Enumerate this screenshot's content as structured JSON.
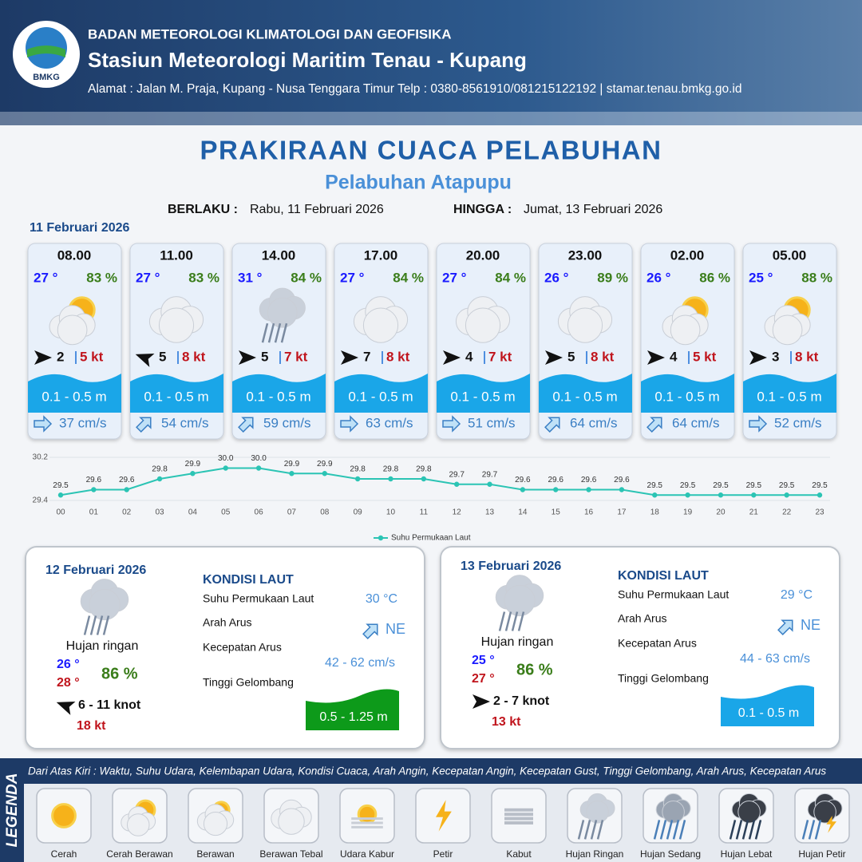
{
  "header": {
    "logo": "BMKG",
    "org": "BADAN METEOROLOGI KLIMATOLOGI DAN GEOFISIKA",
    "station": "Stasiun Meteorologi Maritim Tenau - Kupang",
    "address": "Alamat : Jalan M. Praja, Kupang - Nusa Tenggara Timur Telp : 0380-8561910/081215122192  | stamar.tenau.bmkg.go.id"
  },
  "title": "PRAKIRAAN CUACA PELABUHAN",
  "subtitle": "Pelabuhan Atapupu",
  "validity": {
    "from_label": "BERLAKU :",
    "from": "Rabu, 11 Februari 2026",
    "to_label": "HINGGA :",
    "to": "Jumat, 13 Februari 2026"
  },
  "forecast": {
    "date": "11 Februari 2026",
    "cards": [
      {
        "time": "08.00",
        "temp": "27 °",
        "humidity": "83 %",
        "wind": "2",
        "gust": "5 kt",
        "wave": "0.1 - 0.5 m",
        "current": "37 cm/s"
      },
      {
        "time": "11.00",
        "temp": "27 °",
        "humidity": "83 %",
        "wind": "5",
        "gust": "8 kt",
        "wave": "0.1 - 0.5 m",
        "current": "54 cm/s"
      },
      {
        "time": "14.00",
        "temp": "31 °",
        "humidity": "84 %",
        "wind": "5",
        "gust": "7 kt",
        "wave": "0.1 - 0.5 m",
        "current": "59 cm/s"
      },
      {
        "time": "17.00",
        "temp": "27 °",
        "humidity": "84 %",
        "wind": "7",
        "gust": "8 kt",
        "wave": "0.1 - 0.5 m",
        "current": "63 cm/s"
      },
      {
        "time": "20.00",
        "temp": "27 °",
        "humidity": "84 %",
        "wind": "4",
        "gust": "7 kt",
        "wave": "0.1 - 0.5 m",
        "current": "51 cm/s"
      },
      {
        "time": "23.00",
        "temp": "26 °",
        "humidity": "89 %",
        "wind": "5",
        "gust": "8 kt",
        "wave": "0.1 - 0.5 m",
        "current": "64 cm/s"
      },
      {
        "time": "02.00",
        "temp": "26 °",
        "humidity": "86 %",
        "wind": "4",
        "gust": "5 kt",
        "wave": "0.1 - 0.5 m",
        "current": "64 cm/s"
      },
      {
        "time": "05.00",
        "temp": "25 °",
        "humidity": "88 %",
        "wind": "3",
        "gust": "8 kt",
        "wave": "0.1 - 0.5 m",
        "current": "52 cm/s"
      }
    ]
  },
  "chart_data": {
    "type": "line",
    "categories": [
      "00",
      "01",
      "02",
      "03",
      "04",
      "05",
      "06",
      "07",
      "08",
      "09",
      "10",
      "11",
      "12",
      "13",
      "14",
      "15",
      "16",
      "17",
      "18",
      "19",
      "20",
      "21",
      "22",
      "23"
    ],
    "series": [
      {
        "name": "Suhu Permukaan Laut",
        "color": "#2bc4b4",
        "values": [
          29.5,
          29.6,
          29.6,
          29.8,
          29.9,
          30.0,
          30.0,
          29.9,
          29.9,
          29.8,
          29.8,
          29.8,
          29.7,
          29.7,
          29.6,
          29.6,
          29.6,
          29.6,
          29.5,
          29.5,
          29.5,
          29.5,
          29.5,
          29.5
        ],
        "value_labels": [
          "29.5",
          "29.6",
          "29.6",
          "29.8",
          "29.9",
          "30.0",
          "30.0",
          "29.9",
          "29.9",
          "29.8",
          "29.8",
          "29.8",
          "29.7",
          "29.7",
          "29.6",
          "29.6",
          "29.6",
          "29.6",
          "29.5",
          "29.5",
          "29.5",
          "29.5",
          "29.5",
          "29.5"
        ]
      }
    ],
    "ylim": [
      29.4,
      30.2
    ],
    "yticks": [
      29.4,
      30.2
    ]
  },
  "days": [
    {
      "date": "12 Februari 2026",
      "weather": "Hujan ringan",
      "temp_min": "26 °",
      "temp_max": "28 °",
      "humidity": "86 %",
      "wind": "6  - 11 knot",
      "gust": "18 kt",
      "sea_title": "KONDISI LAUT",
      "sst_label": "Suhu Permukaan Laut",
      "sst": "30 °C",
      "dir_label": "Arah Arus",
      "dir": "NE",
      "speed_label": "Kecepatan Arus",
      "speed": "42 - 62 cm/s",
      "wave_label": "Tinggi Gelombang",
      "wave": "0.5 - 1.25 m",
      "wave_color": "#0d9a1a"
    },
    {
      "date": "13 Februari 2026",
      "weather": "Hujan ringan",
      "temp_min": "25 °",
      "temp_max": "27 °",
      "humidity": "86 %",
      "wind": "2  - 7 knot",
      "gust": "13 kt",
      "sea_title": "KONDISI LAUT",
      "sst_label": "Suhu Permukaan Laut",
      "sst": "29 °C",
      "dir_label": "Arah Arus",
      "dir": "NE",
      "speed_label": "Kecepatan Arus",
      "speed": "44 - 63 cm/s",
      "wave_label": "Tinggi Gelombang",
      "wave": "0.1 - 0.5 m",
      "wave_color": "#1aa6e8"
    }
  ],
  "legend": {
    "title": "LEGENDA",
    "description": "Dari Atas Kiri : Waktu, Suhu Udara, Kelembapan Udara, Kondisi Cuaca, Arah Angin, Kecepatan Angin, Kecepatan Gust, Tinggi Gelombang, Arah Arus, Kecepatan Arus",
    "items": [
      "Cerah",
      "Cerah Berawan",
      "Berawan",
      "Berawan Tebal",
      "Udara Kabur",
      "Petir",
      "Kabut",
      "Hujan Ringan",
      "Hujan Sedang",
      "Hujan Lebat",
      "Hujan Petir"
    ]
  }
}
